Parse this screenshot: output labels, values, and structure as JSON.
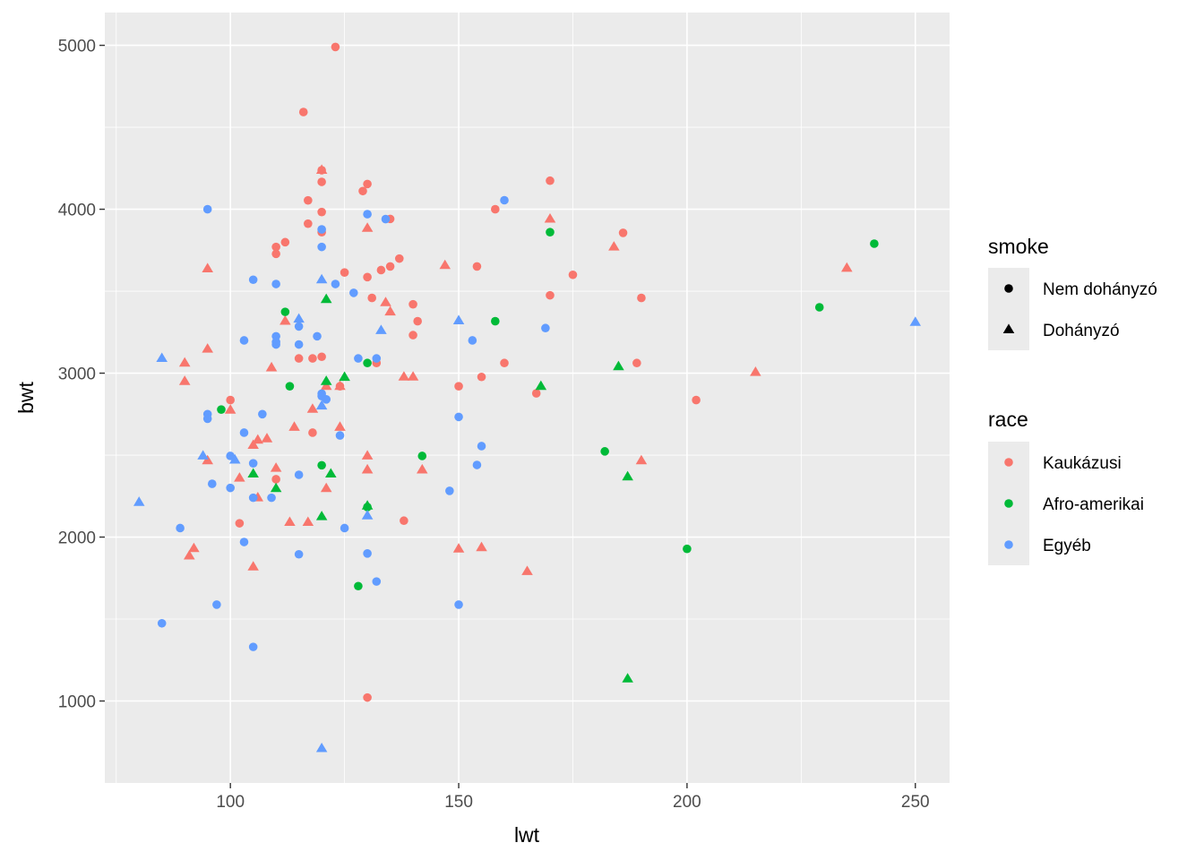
{
  "chart_data": {
    "type": "scatter",
    "xlabel": "lwt",
    "ylabel": "bwt",
    "xlim": [
      72.5,
      257.5
    ],
    "ylim": [
      500,
      5200
    ],
    "xticks": [
      100,
      150,
      200,
      250
    ],
    "yticks": [
      1000,
      2000,
      3000,
      4000,
      5000
    ],
    "grid": true,
    "legend_position": "right",
    "legends": [
      {
        "title": "smoke",
        "aesthetic": "shape",
        "entries": [
          {
            "label": "Nem dohányzó",
            "shape": "circle"
          },
          {
            "label": "Dohányzó",
            "shape": "triangle"
          }
        ]
      },
      {
        "title": "race",
        "aesthetic": "color",
        "entries": [
          {
            "label": "Kaukázusi",
            "color": "#F8766D"
          },
          {
            "label": "Afro-amerikai",
            "color": "#00BA38"
          },
          {
            "label": "Egyéb",
            "color": "#619CFF"
          }
        ]
      }
    ],
    "colors": {
      "Kaukázusi": "#F8766D",
      "Afro-amerikai": "#00BA38",
      "Egyéb": "#619CFF"
    },
    "series": [
      {
        "race": "Kaukázusi",
        "smoke": "Nem dohányzó",
        "points": [
          [
            123,
            4990
          ],
          [
            116,
            4593
          ],
          [
            120,
            4238
          ],
          [
            130,
            4154
          ],
          [
            120,
            4167
          ],
          [
            129,
            4111
          ],
          [
            117,
            4054
          ],
          [
            170,
            4174
          ],
          [
            158,
            4000
          ],
          [
            120,
            3983
          ],
          [
            135,
            3941
          ],
          [
            117,
            3912
          ],
          [
            120,
            3860
          ],
          [
            186,
            3856
          ],
          [
            110,
            3770
          ],
          [
            112,
            3799
          ],
          [
            110,
            3728
          ],
          [
            137,
            3699
          ],
          [
            135,
            3651
          ],
          [
            154,
            3651
          ],
          [
            125,
            3614
          ],
          [
            133,
            3629
          ],
          [
            175,
            3600
          ],
          [
            130,
            3586
          ],
          [
            131,
            3459
          ],
          [
            170,
            3475
          ],
          [
            190,
            3459
          ],
          [
            140,
            3420
          ],
          [
            141,
            3317
          ],
          [
            140,
            3232
          ],
          [
            118,
            3090
          ],
          [
            120,
            3100
          ],
          [
            115,
            3090
          ],
          [
            160,
            3062
          ],
          [
            189,
            3062
          ],
          [
            132,
            3062
          ],
          [
            155,
            2977
          ],
          [
            150,
            2920
          ],
          [
            100,
            2836
          ],
          [
            202,
            2836
          ],
          [
            167,
            2877
          ],
          [
            124,
            2920
          ],
          [
            118,
            2637
          ],
          [
            110,
            2353
          ],
          [
            102,
            2084
          ],
          [
            138,
            2100
          ],
          [
            130,
            1021
          ]
        ]
      },
      {
        "race": "Kaukázusi",
        "smoke": "Dohányzó",
        "points": [
          [
            120,
            4238
          ],
          [
            130,
            3884
          ],
          [
            170,
            3940
          ],
          [
            184,
            3770
          ],
          [
            95,
            3637
          ],
          [
            147,
            3657
          ],
          [
            135,
            3374
          ],
          [
            134,
            3430
          ],
          [
            112,
            3317
          ],
          [
            95,
            3147
          ],
          [
            109,
            3033
          ],
          [
            90,
            3062
          ],
          [
            90,
            2950
          ],
          [
            138,
            2977
          ],
          [
            140,
            2977
          ],
          [
            215,
            3005
          ],
          [
            235,
            3640
          ],
          [
            100,
            2775
          ],
          [
            118,
            2780
          ],
          [
            121,
            2920
          ],
          [
            124,
            2920
          ],
          [
            108,
            2600
          ],
          [
            106,
            2592
          ],
          [
            105,
            2560
          ],
          [
            124,
            2670
          ],
          [
            114,
            2670
          ],
          [
            130,
            2495
          ],
          [
            110,
            2420
          ],
          [
            130,
            2410
          ],
          [
            142,
            2410
          ],
          [
            102,
            2360
          ],
          [
            95,
            2466
          ],
          [
            190,
            2466
          ],
          [
            121,
            2296
          ],
          [
            106,
            2240
          ],
          [
            113,
            2090
          ],
          [
            117,
            2090
          ],
          [
            92,
            1930
          ],
          [
            91,
            1885
          ],
          [
            105,
            1818
          ],
          [
            155,
            1936
          ],
          [
            150,
            1928
          ],
          [
            165,
            1790
          ]
        ]
      },
      {
        "race": "Afro-amerikai",
        "smoke": "Nem dohányzó",
        "points": [
          [
            241,
            3790
          ],
          [
            229,
            3402
          ],
          [
            170,
            3860
          ],
          [
            158,
            3317
          ],
          [
            112,
            3374
          ],
          [
            113,
            2920
          ],
          [
            130,
            3062
          ],
          [
            98,
            2778
          ],
          [
            142,
            2495
          ],
          [
            120,
            2438
          ],
          [
            182,
            2523
          ],
          [
            130,
            2183
          ],
          [
            128,
            1701
          ],
          [
            200,
            1928
          ]
        ]
      },
      {
        "race": "Afro-amerikai",
        "smoke": "Dohányzó",
        "points": [
          [
            121,
            3450
          ],
          [
            185,
            3040
          ],
          [
            168,
            2920
          ],
          [
            125,
            2975
          ],
          [
            121,
            2950
          ],
          [
            105,
            2385
          ],
          [
            122,
            2385
          ],
          [
            110,
            2296
          ],
          [
            187,
            2368
          ],
          [
            130,
            2190
          ],
          [
            120,
            2125
          ],
          [
            187,
            1135
          ]
        ]
      },
      {
        "race": "Egyéb",
        "smoke": "Nem dohányzó",
        "points": [
          [
            95,
            4000
          ],
          [
            160,
            4055
          ],
          [
            130,
            3970
          ],
          [
            134,
            3940
          ],
          [
            120,
            3877
          ],
          [
            120,
            3770
          ],
          [
            105,
            3570
          ],
          [
            110,
            3544
          ],
          [
            123,
            3544
          ],
          [
            127,
            3490
          ],
          [
            115,
            3285
          ],
          [
            103,
            3200
          ],
          [
            110,
            3225
          ],
          [
            110,
            3175
          ],
          [
            110,
            3190
          ],
          [
            115,
            3175
          ],
          [
            119,
            3225
          ],
          [
            153,
            3200
          ],
          [
            169,
            3275
          ],
          [
            128,
            3090
          ],
          [
            132,
            3090
          ],
          [
            120,
            2875
          ],
          [
            120,
            2860
          ],
          [
            121,
            2840
          ],
          [
            95,
            2750
          ],
          [
            107,
            2750
          ],
          [
            95,
            2722
          ],
          [
            150,
            2733
          ],
          [
            103,
            2637
          ],
          [
            124,
            2620
          ],
          [
            100,
            2495
          ],
          [
            105,
            2450
          ],
          [
            155,
            2555
          ],
          [
            115,
            2380
          ],
          [
            96,
            2325
          ],
          [
            100,
            2300
          ],
          [
            105,
            2240
          ],
          [
            109,
            2240
          ],
          [
            148,
            2282
          ],
          [
            154,
            2440
          ],
          [
            89,
            2055
          ],
          [
            125,
            2055
          ],
          [
            103,
            1970
          ],
          [
            115,
            1895
          ],
          [
            130,
            1900
          ],
          [
            132,
            1729
          ],
          [
            97,
            1588
          ],
          [
            150,
            1588
          ],
          [
            85,
            1474
          ],
          [
            105,
            1330
          ]
        ]
      },
      {
        "race": "Egyéb",
        "smoke": "Dohányzó",
        "points": [
          [
            85,
            3090
          ],
          [
            120,
            3570
          ],
          [
            115,
            3330
          ],
          [
            150,
            3320
          ],
          [
            133,
            3260
          ],
          [
            250,
            3310
          ],
          [
            94,
            2495
          ],
          [
            101,
            2470
          ],
          [
            120,
            2800
          ],
          [
            80,
            2212
          ],
          [
            130,
            2130
          ],
          [
            120,
            710
          ]
        ]
      }
    ]
  }
}
